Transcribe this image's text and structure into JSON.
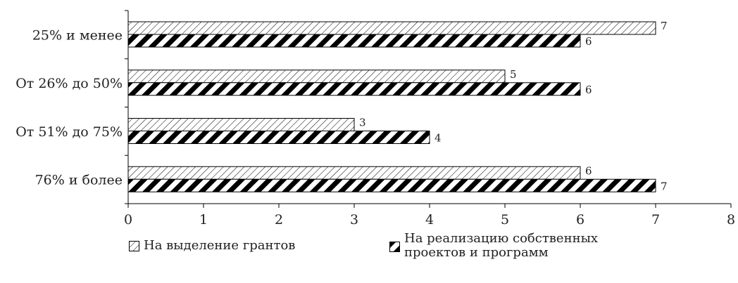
{
  "chart_data": {
    "type": "bar",
    "orientation": "horizontal",
    "categories": [
      "25% и менее",
      "От 26% до 50%",
      "От 51% до 75%",
      "76% и более"
    ],
    "series": [
      {
        "name": "На выделение грантов",
        "values": [
          7,
          5,
          3,
          6
        ]
      },
      {
        "name": "На реализацию собственных проектов и программ",
        "values": [
          6,
          6,
          4,
          7
        ]
      }
    ],
    "xlim": [
      0,
      8
    ],
    "xticks": [
      0,
      1,
      2,
      3,
      4,
      5,
      6,
      7,
      8
    ],
    "grid": false,
    "legend": "bottom"
  }
}
